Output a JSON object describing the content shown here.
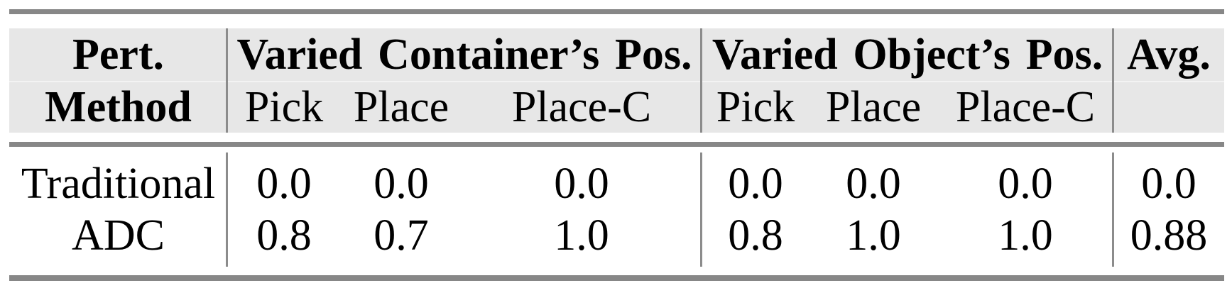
{
  "table": {
    "header": {
      "method_line1": "Pert.",
      "method_line2": "Method",
      "groups": [
        {
          "label": "Varied Container’s Pos.",
          "subcols": [
            "Pick",
            "Place",
            "Place-C"
          ]
        },
        {
          "label": "Varied Object’s Pos.",
          "subcols": [
            "Pick",
            "Place",
            "Place-C"
          ]
        }
      ],
      "avg_label": "Avg."
    },
    "rows": [
      {
        "method": "Traditional",
        "values": [
          "0.0",
          "0.0",
          "0.0",
          "0.0",
          "0.0",
          "0.0"
        ],
        "avg": "0.0"
      },
      {
        "method": "ADC",
        "values": [
          "0.8",
          "0.7",
          "1.0",
          "0.8",
          "1.0",
          "1.0"
        ],
        "avg": "0.88"
      }
    ],
    "colors": {
      "header_bg": "#e7e7e7",
      "rule": "#878787",
      "divider": "#8c8c8c",
      "text": "#000000",
      "row_seam": "#f3f3f3"
    }
  }
}
